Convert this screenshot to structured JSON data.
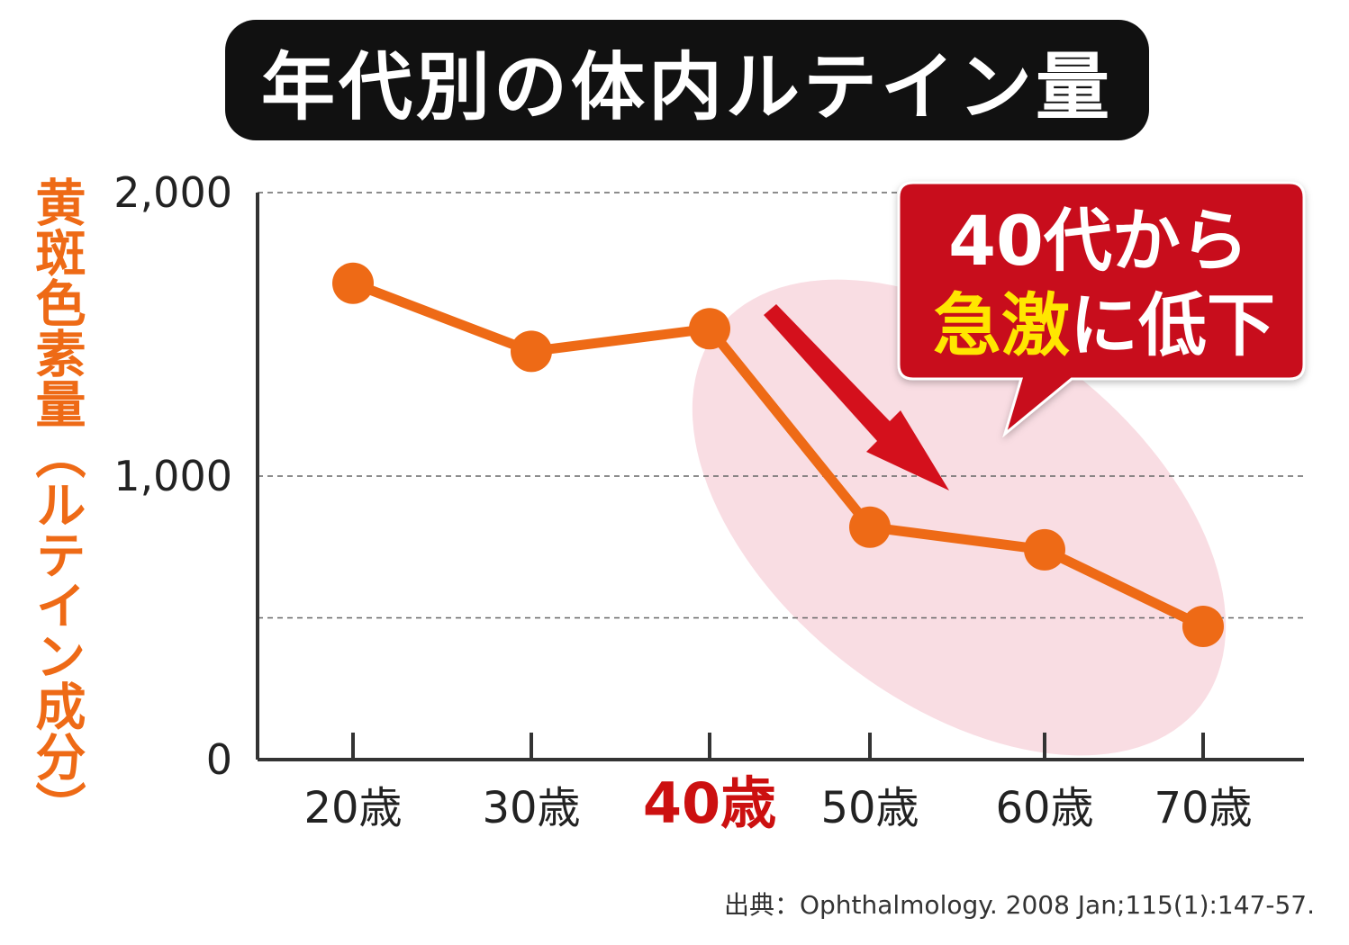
{
  "chart_data": {
    "type": "line",
    "title": "年代別の体内ルテイン量",
    "ylabel": "黄斑色素量（ルテイン成分）",
    "categories": [
      "20歳",
      "30歳",
      "40歳",
      "50歳",
      "60歳",
      "70歳"
    ],
    "highlight_category": "40歳",
    "series": [
      {
        "values": [
          1680,
          1440,
          1520,
          820,
          740,
          470
        ]
      }
    ],
    "ylim": [
      0,
      2000
    ],
    "yticks": [
      {
        "value": 0,
        "label": "0"
      },
      {
        "value": 1000,
        "label": "1,000"
      },
      {
        "value": 2000,
        "label": "2,000"
      }
    ],
    "gridlines": [
      2000,
      1000,
      500
    ],
    "callout": {
      "line1": "40代から",
      "line2_emphasis": "急激",
      "line2_rest": "に低下"
    },
    "source": "出典：Ophthalmology. 2008 Jan;115(1):147-57."
  },
  "colors": {
    "line": "#ee6a16",
    "highlight_label": "#cc1010",
    "callout_bg": "#c8101e",
    "callout_emphasis": "#ffe600",
    "ellipse": "#f9dde3",
    "axis": "#333333"
  }
}
